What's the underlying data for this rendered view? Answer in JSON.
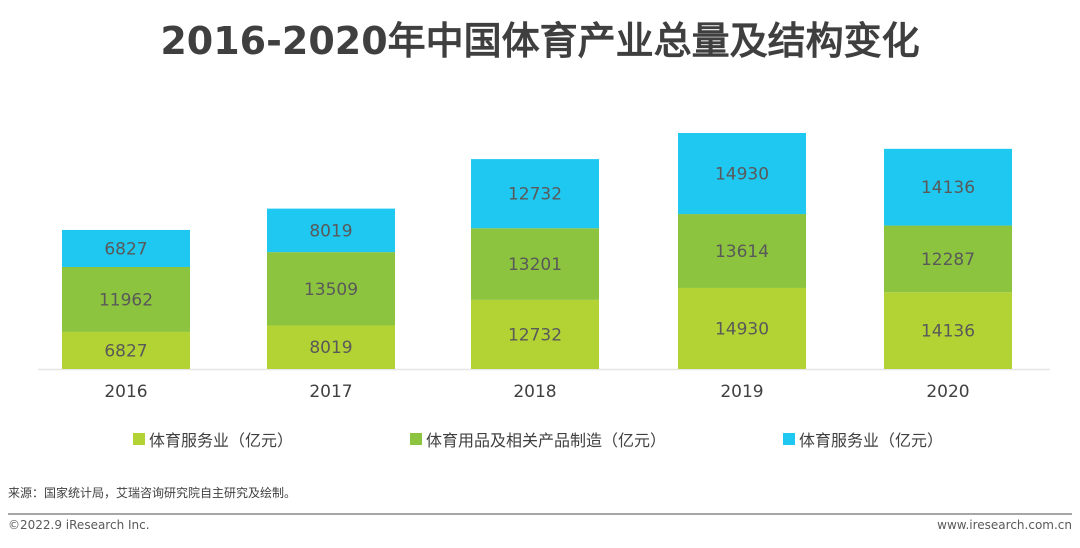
{
  "chart_data": {
    "type": "bar",
    "stacked": true,
    "title": "2016-2020年中国体育产业总量及结构变化",
    "categories": [
      "2016",
      "2017",
      "2018",
      "2019",
      "2020"
    ],
    "series": [
      {
        "name": "体育服务业（亿元）",
        "color": "#B3D334",
        "values": [
          6827,
          8019,
          12732,
          14930,
          14136
        ]
      },
      {
        "name": "体育用品及相关产品制造（亿元）",
        "color": "#8DC43F",
        "values": [
          11962,
          13509,
          13201,
          13614,
          12287
        ]
      },
      {
        "name": "体育服务业（亿元）",
        "color": "#1FC8F1",
        "values": [
          6827,
          8019,
          12732,
          14930,
          14136
        ]
      }
    ],
    "xlabel": "",
    "ylabel": "",
    "ylim": [
      0,
      45000
    ],
    "grid": false,
    "legend": "bottom"
  },
  "footer": {
    "source": "来源：国家统计局，艾瑞咨询研究院自主研究及绘制。",
    "copyright": "©2022.9 iResearch Inc.",
    "website": "www.iresearch.com.cn"
  }
}
